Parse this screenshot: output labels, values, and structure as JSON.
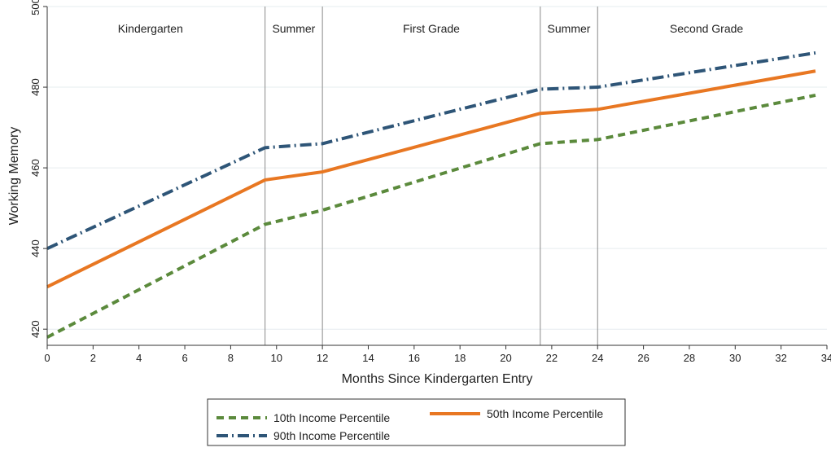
{
  "chart_data": {
    "type": "line",
    "xlabel": "Months Since Kindergarten Entry",
    "ylabel": "Working Memory",
    "xlim": [
      0,
      34
    ],
    "ylim": [
      416,
      500
    ],
    "x_ticks": [
      0,
      2,
      4,
      6,
      8,
      10,
      12,
      14,
      16,
      18,
      20,
      22,
      24,
      26,
      28,
      30,
      32,
      34
    ],
    "y_ticks": [
      420,
      440,
      460,
      480,
      500
    ],
    "grid": "horizontal",
    "period_boundaries": [
      9.5,
      12,
      21.5,
      24
    ],
    "periods": [
      {
        "label": "Kindergarten",
        "center": 4.5
      },
      {
        "label": "Summer",
        "center": 10.75
      },
      {
        "label": "First Grade",
        "center": 16.75
      },
      {
        "label": "Summer",
        "center": 22.75
      },
      {
        "label": "Second Grade",
        "center": 28.75
      }
    ],
    "series": [
      {
        "name": "10th Income Percentile",
        "color": "#5b8a3c",
        "style": "dash",
        "x": [
          0,
          9.5,
          12,
          21.5,
          24,
          33.5
        ],
        "values": [
          418,
          446,
          449.5,
          466,
          467,
          478
        ]
      },
      {
        "name": "50th Income Percentile",
        "color": "#e87722",
        "style": "solid",
        "x": [
          0,
          9.5,
          12,
          21.5,
          24,
          33.5
        ],
        "values": [
          430.5,
          457,
          459,
          473.5,
          474.5,
          484
        ]
      },
      {
        "name": "90th Income Percentile",
        "color": "#2e5577",
        "style": "dashdot",
        "x": [
          0,
          9.5,
          12,
          21.5,
          24,
          33.5
        ],
        "values": [
          440,
          465,
          466,
          479.5,
          480,
          488.5
        ]
      }
    ],
    "legend": {
      "placement": "bottom-center",
      "entries": [
        "10th Income Percentile",
        "50th Income Percentile",
        "90th Income Percentile"
      ]
    }
  }
}
